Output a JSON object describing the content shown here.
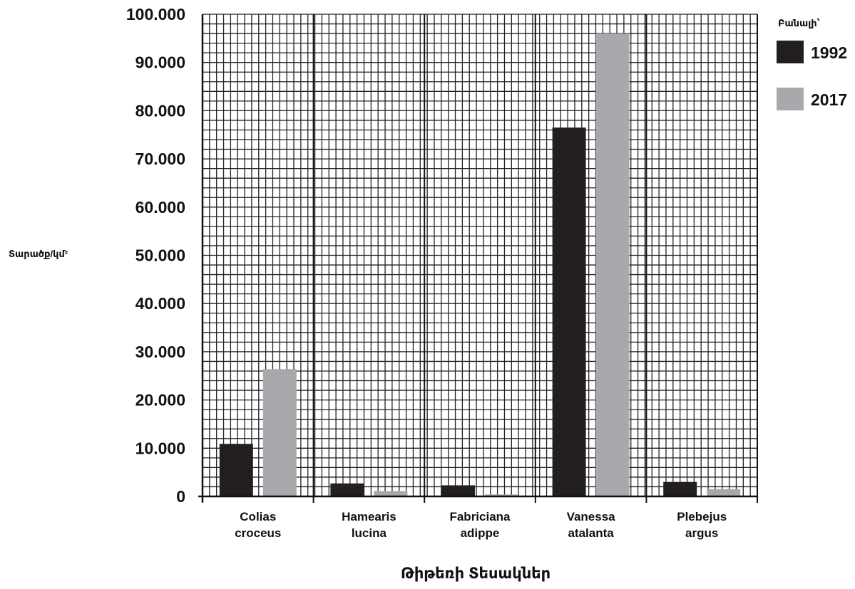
{
  "chart_data": {
    "type": "bar",
    "title": "",
    "xlabel": "Թիթեռի Տեսակներ",
    "ylabel": "Տարածք/կմ²",
    "categories": [
      [
        "Colias",
        "croceus"
      ],
      [
        "Hamearis",
        "lucina"
      ],
      [
        "Fabriciana",
        "adippe"
      ],
      [
        "Vanessa",
        "atalanta"
      ],
      [
        "Plebejus",
        "argus"
      ]
    ],
    "series": [
      {
        "name": "1992",
        "color": "#231f20",
        "values": [
          10900,
          2700,
          2300,
          76500,
          3000
        ]
      },
      {
        "name": "2017",
        "color": "#a7a9ac",
        "values": [
          26400,
          1100,
          400,
          96000,
          1500
        ]
      }
    ],
    "ylim": [
      0,
      100000
    ],
    "yticks": [
      "0",
      "10.000",
      "20.000",
      "30.000",
      "40.000",
      "50.000",
      "60.000",
      "70.000",
      "80.000",
      "90.000",
      "100.000"
    ],
    "grid": true,
    "legend": {
      "title": "Բանալի՝",
      "position": "top-right"
    }
  }
}
